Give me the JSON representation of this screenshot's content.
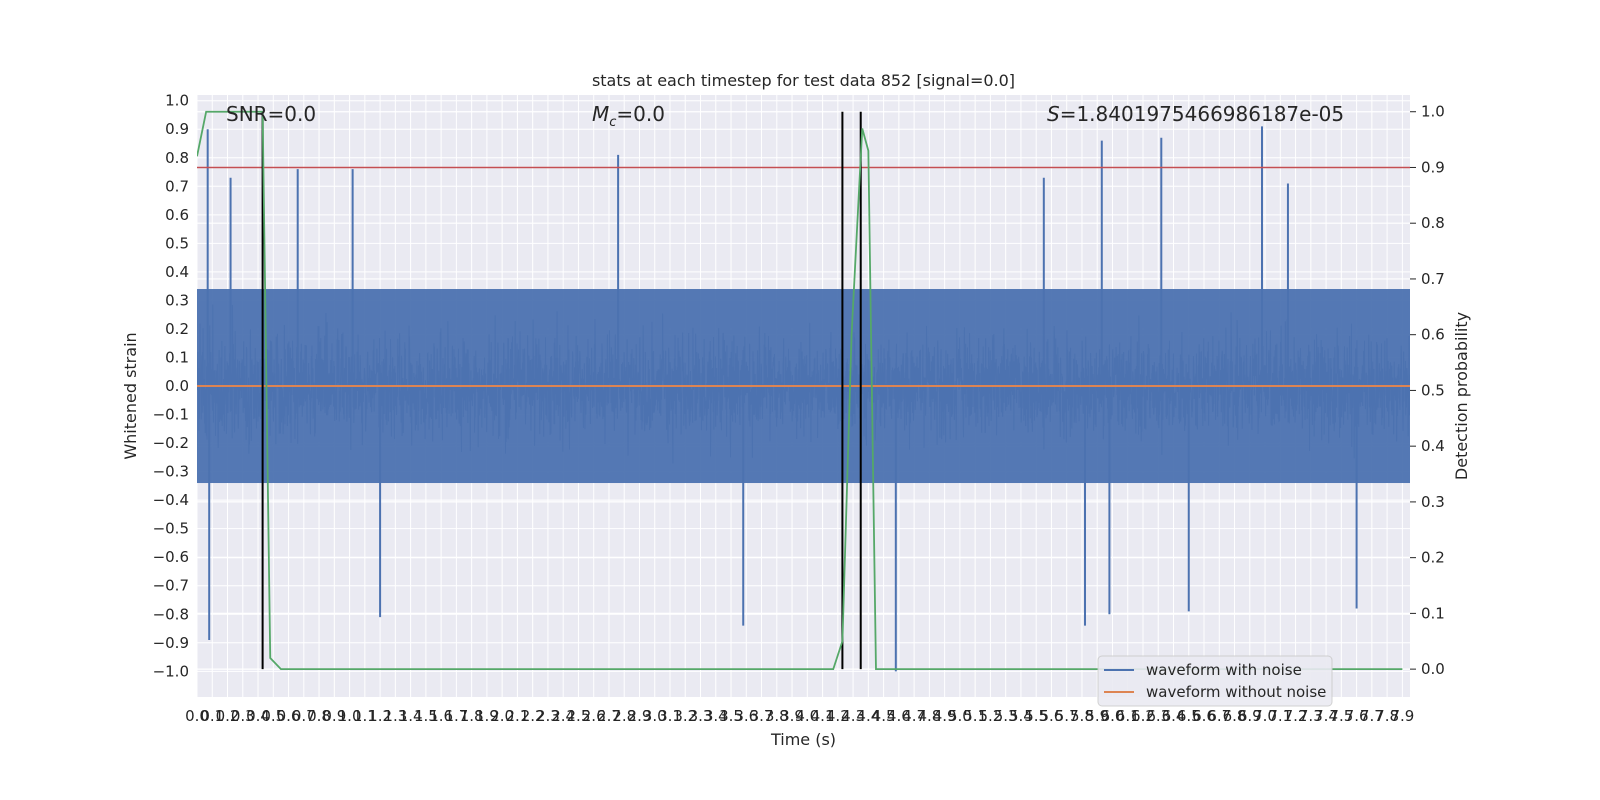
{
  "chart_data": {
    "type": "line",
    "title": "stats at each timestep for test data 852 [signal=0.0]",
    "xlabel": "Time (s)",
    "ylabel": "Whitened strain",
    "y2label": "Detection probability",
    "xlim": [
      0.0,
      7.95
    ],
    "ylim": [
      -1.09,
      1.02
    ],
    "y2lim": [
      -0.05,
      1.03
    ],
    "xticks": [
      "0.0",
      "0.1",
      "0.2",
      "0.3",
      "0.4",
      "0.5",
      "0.6",
      "0.7",
      "0.8",
      "0.9",
      "1.0",
      "1.1",
      "1.2",
      "1.3",
      "1.4",
      "1.5",
      "1.6",
      "1.7",
      "1.8",
      "1.9",
      "2.0",
      "2.1",
      "2.2",
      "2.3",
      "2.4",
      "2.5",
      "2.6",
      "2.7",
      "2.8",
      "2.9",
      "3.0",
      "3.1",
      "3.2",
      "3.3",
      "3.4",
      "3.5",
      "3.6",
      "3.7",
      "3.8",
      "3.9",
      "4.0",
      "4.1",
      "4.2",
      "4.3",
      "4.4",
      "4.5",
      "4.6",
      "4.7",
      "4.8",
      "4.9",
      "5.0",
      "5.1",
      "5.2",
      "5.3",
      "5.4",
      "5.5",
      "5.6",
      "5.7",
      "5.8",
      "5.9",
      "6.0",
      "6.1",
      "6.2",
      "6.3",
      "6.4",
      "6.5",
      "6.6",
      "6.7",
      "6.8",
      "6.9",
      "7.0",
      "7.1",
      "7.2",
      "7.3",
      "7.4",
      "7.5",
      "7.6",
      "7.7",
      "7.8",
      "7.9"
    ],
    "yticks": [
      "1.0",
      "0.9",
      "0.8",
      "0.7",
      "0.6",
      "0.5",
      "0.4",
      "0.3",
      "0.2",
      "0.1",
      "0.0",
      "−0.1",
      "−0.2",
      "−0.3",
      "−0.4",
      "−0.5",
      "−0.6",
      "−0.7",
      "−0.8",
      "−0.9",
      "−1.0"
    ],
    "y2ticks": [
      "1.0",
      "0.9",
      "0.8",
      "0.7",
      "0.6",
      "0.5",
      "0.4",
      "0.3",
      "0.2",
      "0.1",
      "0.0"
    ],
    "annotations": {
      "snr": "SNR=0.0",
      "mc": "=0.0",
      "mc_symbol": "M",
      "mc_sub": "c",
      "s": "=1.8401975466986187e-05",
      "s_symbol": "S"
    },
    "series": [
      {
        "name": "waveform with noise",
        "color": "#4c72b0",
        "description_type": "noise",
        "typical_envelope": [
          -0.4,
          0.4
        ],
        "peaks_pos": [
          [
            0.07,
            0.9
          ],
          [
            0.22,
            0.73
          ],
          [
            0.66,
            0.76
          ],
          [
            1.02,
            0.76
          ],
          [
            2.76,
            0.81
          ],
          [
            5.55,
            0.73
          ],
          [
            5.93,
            0.86
          ],
          [
            6.32,
            0.87
          ],
          [
            6.98,
            0.91
          ],
          [
            7.15,
            0.71
          ]
        ],
        "peaks_neg": [
          [
            0.08,
            -0.89
          ],
          [
            1.2,
            -0.81
          ],
          [
            3.58,
            -0.84
          ],
          [
            4.58,
            -1.0
          ],
          [
            5.82,
            -0.84
          ],
          [
            5.98,
            -0.8
          ],
          [
            7.6,
            -0.78
          ],
          [
            6.5,
            -0.79
          ]
        ]
      },
      {
        "name": "waveform without noise",
        "color": "#dd8452",
        "x": [
          0.0,
          7.95
        ],
        "y": [
          0.0,
          0.0
        ]
      },
      {
        "name": "detection probability",
        "color": "#55a868",
        "axis": "right",
        "x": [
          0.0,
          0.06,
          0.12,
          0.2,
          0.3,
          0.43,
          0.48,
          0.55,
          1.0,
          2.0,
          3.0,
          4.0,
          4.17,
          4.23,
          4.29,
          4.36,
          4.4,
          4.45,
          4.55,
          5.0,
          6.0,
          7.0,
          7.9
        ],
        "y": [
          0.92,
          1.0,
          1.0,
          1.0,
          1.0,
          1.0,
          0.02,
          0.0,
          0.0,
          0.0,
          0.0,
          0.0,
          0.0,
          0.05,
          0.6,
          0.97,
          0.93,
          0.0,
          0.0,
          0.0,
          0.0,
          0.0,
          0.0
        ]
      }
    ],
    "threshold": {
      "value": 0.9,
      "axis": "right",
      "color": "#c44e52"
    },
    "vlines": [
      0.43,
      4.23,
      4.35
    ],
    "legend": {
      "placement": "lower right",
      "entries": [
        {
          "label": "waveform with noise",
          "color": "#4c72b0"
        },
        {
          "label": "waveform without noise",
          "color": "#dd8452"
        }
      ]
    },
    "grid": true,
    "style": {
      "axes_bg": "#eaeaf2",
      "grid_color": "#ffffff",
      "vline_color": "#000000"
    }
  }
}
